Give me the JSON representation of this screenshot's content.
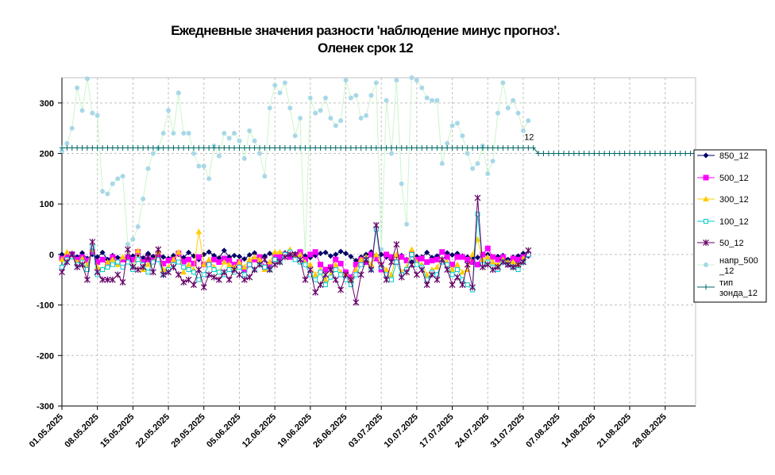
{
  "title": {
    "line1": "Ежедневные значения разности 'наблюдение минус прогноз'.",
    "line2": "Оленек     срок 12"
  },
  "chart_data": {
    "type": "line",
    "ylim": [
      -300,
      350
    ],
    "yticks": [
      -300,
      -200,
      -100,
      0,
      100,
      200,
      300
    ],
    "xlim": [
      "01.05.2025",
      "03.09.2025"
    ],
    "xticks": [
      "01.05.2025",
      "08.05.2025",
      "15.05.2025",
      "22.05.2025",
      "29.05.2025",
      "05.06.2025",
      "12.06.2025",
      "19.06.2025",
      "26.06.2025",
      "03.07.2025",
      "10.07.2025",
      "17.07.2025",
      "24.07.2025",
      "31.07.2025",
      "07.08.2025",
      "14.08.2025",
      "21.08.2025",
      "28.08.2025"
    ],
    "grid": true,
    "legend_position": "right",
    "annotation": {
      "text": "12",
      "x_day": 92,
      "y": 233
    },
    "series": [
      {
        "name": "850_12",
        "color": "#000066",
        "marker": "diamond",
        "values": [
          0,
          -3,
          2,
          -5,
          3,
          -8,
          0,
          -5,
          4,
          -10,
          -2,
          -6,
          -9,
          -4,
          -3,
          0,
          -7,
          2,
          -4,
          3,
          -5,
          -8,
          -2,
          0,
          -6,
          4,
          -3,
          -10,
          0,
          5,
          -2,
          -7,
          8,
          -5,
          -2,
          -4,
          -9,
          -1,
          3,
          -6,
          -3,
          2,
          -4,
          0,
          3,
          -2,
          1,
          5,
          -3,
          -6,
          -2,
          2,
          4,
          -3,
          0,
          6,
          2,
          -4,
          -12,
          -5,
          0,
          5,
          -3,
          0,
          -5,
          -8,
          -3,
          -2,
          -10,
          -15,
          -4,
          -5,
          4,
          -6,
          -3,
          5,
          3,
          -1,
          2,
          -3,
          -5,
          -8,
          -6,
          -2,
          0,
          -6,
          -4,
          -2,
          -10,
          -5,
          -3,
          2,
          -3
        ]
      },
      {
        "name": "500_12",
        "color": "#ff00ff",
        "marker": "square",
        "values": [
          -8,
          -5,
          0,
          -10,
          -5,
          -12,
          5,
          -15,
          -10,
          -20,
          -5,
          -15,
          -10,
          -6,
          -10,
          5,
          -15,
          -10,
          -12,
          0,
          -18,
          -12,
          -10,
          2,
          -14,
          -10,
          -18,
          -5,
          -20,
          -18,
          -10,
          -15,
          -8,
          -12,
          -20,
          -15,
          -30,
          -20,
          -10,
          -5,
          -25,
          -20,
          -5,
          -5,
          0,
          -5,
          -2,
          5,
          -10,
          0,
          5,
          -20,
          -30,
          -25,
          -10,
          -18,
          -35,
          -45,
          -20,
          -10,
          -15,
          0,
          -8,
          -30,
          0,
          -5,
          -15,
          -5,
          -12,
          0,
          -10,
          -8,
          -15,
          -12,
          -10,
          5,
          -5,
          -20,
          -5,
          -5,
          -10,
          -15,
          -20,
          0,
          12,
          -5,
          -10,
          -5,
          -20,
          -8,
          -10,
          -5,
          0
        ]
      },
      {
        "name": "300_12",
        "color": "#ffcc00",
        "marker": "triangle",
        "values": [
          -10,
          5,
          -5,
          -15,
          -8,
          -20,
          10,
          -25,
          -30,
          -15,
          -10,
          -20,
          -5,
          -15,
          -25,
          8,
          -30,
          -20,
          -15,
          5,
          -30,
          -25,
          -10,
          5,
          -35,
          -20,
          -30,
          45,
          -20,
          -10,
          -25,
          -35,
          -15,
          -20,
          -25,
          -15,
          -25,
          -10,
          -5,
          -10,
          -30,
          -15,
          5,
          5,
          0,
          10,
          -5,
          0,
          -15,
          -20,
          -40,
          -30,
          -50,
          -40,
          -20,
          -35,
          -40,
          -50,
          -30,
          -10,
          -5,
          -20,
          0,
          -20,
          -30,
          -40,
          0,
          -35,
          -25,
          10,
          -15,
          -20,
          -40,
          -30,
          -25,
          -10,
          -15,
          -30,
          -20,
          -35,
          -30,
          0,
          30,
          -10,
          -5,
          -15,
          -20,
          -10,
          -15,
          -15,
          -20,
          -8,
          0
        ]
      },
      {
        "name": "100_12",
        "color": "#00cccc",
        "marker": "square-open",
        "values": [
          -25,
          -10,
          -5,
          -20,
          -15,
          -30,
          15,
          -40,
          -30,
          -25,
          -20,
          -15,
          -25,
          -15,
          -30,
          -10,
          -20,
          -35,
          -15,
          -10,
          -40,
          -30,
          -20,
          -15,
          -25,
          -30,
          -35,
          -50,
          -40,
          -20,
          -30,
          -35,
          -40,
          -30,
          -35,
          -25,
          -40,
          -20,
          -30,
          -20,
          -25,
          -30,
          -10,
          -15,
          0,
          5,
          -10,
          -15,
          -20,
          -40,
          -50,
          -35,
          -60,
          -45,
          -30,
          -40,
          -50,
          -60,
          -40,
          -20,
          -10,
          -30,
          50,
          -25,
          -40,
          -50,
          -15,
          -40,
          -30,
          0,
          -20,
          -25,
          -50,
          -35,
          -40,
          -15,
          -20,
          -40,
          -30,
          -50,
          -60,
          -70,
          80,
          -20,
          -15,
          -25,
          -30,
          -15,
          -20,
          -25,
          -30,
          -15,
          0
        ]
      },
      {
        "name": "50_12",
        "color": "#660066",
        "marker": "star",
        "values": [
          -35,
          -15,
          0,
          -25,
          -20,
          -50,
          25,
          -35,
          -50,
          -50,
          -50,
          -40,
          -55,
          10,
          -25,
          -30,
          -25,
          -5,
          -35,
          10,
          -40,
          -35,
          -25,
          -40,
          -55,
          -50,
          -60,
          -30,
          -65,
          -40,
          -45,
          -50,
          -35,
          -50,
          -30,
          -40,
          -50,
          -45,
          -30,
          -20,
          -10,
          -30,
          -20,
          -15,
          -5,
          0,
          0,
          -10,
          -50,
          -30,
          -75,
          -60,
          -40,
          -30,
          -50,
          -70,
          -40,
          -50,
          -95,
          -40,
          -10,
          -30,
          58,
          -20,
          -50,
          -15,
          20,
          -45,
          -35,
          -20,
          -40,
          -30,
          -60,
          -40,
          -50,
          -10,
          -30,
          -60,
          -45,
          -60,
          -20,
          -65,
          112,
          -25,
          -20,
          -30,
          -25,
          -15,
          -20,
          -25,
          -20,
          -15,
          8
        ]
      },
      {
        "name": "напр_500_12",
        "color": "#a8d8e8",
        "marker": "circle",
        "line_color": "#ccf5cc",
        "values": [
          205,
          220,
          250,
          330,
          285,
          348,
          280,
          275,
          125,
          120,
          140,
          150,
          155,
          20,
          30,
          55,
          110,
          170,
          200,
          210,
          240,
          285,
          240,
          320,
          240,
          240,
          200,
          175,
          175,
          150,
          215,
          195,
          240,
          230,
          240,
          225,
          190,
          245,
          225,
          200,
          155,
          290,
          335,
          320,
          340,
          290,
          235,
          270,
          -5,
          310,
          280,
          285,
          310,
          270,
          255,
          265,
          345,
          310,
          315,
          270,
          275,
          315,
          340,
          10,
          305,
          200,
          345,
          140,
          60,
          350,
          345,
          330,
          310,
          305,
          305,
          180,
          220,
          255,
          260,
          235,
          200,
          170,
          180,
          215,
          160,
          185,
          280,
          340,
          290,
          305,
          280,
          245,
          265
        ]
      },
      {
        "name": "тип зонда_12",
        "color": "#006666",
        "marker": "plus",
        "values": [
          211,
          211,
          211,
          211,
          211,
          211,
          211,
          211,
          211,
          211,
          211,
          211,
          211,
          211,
          211,
          211,
          211,
          211,
          211,
          211,
          211,
          211,
          211,
          211,
          211,
          211,
          211,
          211,
          211,
          211,
          211,
          211,
          211,
          211,
          211,
          211,
          211,
          211,
          211,
          211,
          211,
          211,
          211,
          211,
          211,
          211,
          211,
          211,
          211,
          211,
          211,
          211,
          211,
          211,
          211,
          211,
          211,
          211,
          211,
          211,
          211,
          211,
          211,
          211,
          211,
          211,
          211,
          211,
          211,
          211,
          211,
          211,
          211,
          211,
          211,
          211,
          211,
          211,
          211,
          211,
          211,
          211,
          211,
          211,
          211,
          211,
          211,
          211,
          211,
          211,
          211,
          211,
          211,
          211,
          200,
          200,
          200,
          200,
          200,
          200,
          200,
          200,
          200,
          200,
          200,
          200,
          200,
          200,
          200,
          200,
          200,
          200,
          200,
          200,
          200,
          200,
          200,
          200,
          200,
          200,
          200,
          200,
          200,
          200,
          200,
          200,
          200,
          200,
          200,
          200,
          200,
          200,
          200,
          200,
          200
        ]
      }
    ]
  }
}
